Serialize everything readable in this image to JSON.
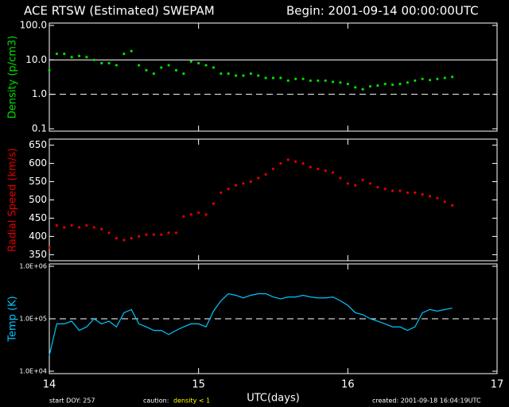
{
  "header": {
    "title": "ACE RTSW (Estimated) SWEPAM",
    "begin": "Begin: 2001-09-14 00:00:00UTC"
  },
  "footer": {
    "start": "start DOY: 257",
    "caution": "caution:",
    "caution_note": "density < 1",
    "created": "created: 2001-09-18 16:04:19UTC"
  },
  "chart_data": [
    {
      "type": "scatter",
      "ylabel": "Density (p/cm3)",
      "log_y": true,
      "color": "#00e000",
      "xlim": [
        14,
        17
      ],
      "xticks": [
        14,
        15,
        16,
        17
      ],
      "ylim": [
        0.1,
        100
      ],
      "yticks": [
        {
          "value": 0.1,
          "label": "0.1"
        },
        {
          "value": 1,
          "label": "1.0"
        },
        {
          "value": 10,
          "label": "10.0"
        },
        {
          "value": 100,
          "label": "100.0"
        }
      ],
      "hlines": [
        {
          "value": 10,
          "style": "solid"
        },
        {
          "value": 1,
          "style": "dashed"
        }
      ],
      "x": [
        14.0,
        14.05,
        14.1,
        14.15,
        14.2,
        14.25,
        14.3,
        14.35,
        14.4,
        14.45,
        14.5,
        14.55,
        14.6,
        14.65,
        14.7,
        14.75,
        14.8,
        14.85,
        14.9,
        14.95,
        15.0,
        15.05,
        15.1,
        15.15,
        15.2,
        15.25,
        15.3,
        15.35,
        15.4,
        15.45,
        15.5,
        15.55,
        15.6,
        15.65,
        15.7,
        15.75,
        15.8,
        15.85,
        15.9,
        15.95,
        16.0,
        16.05,
        16.1,
        16.15,
        16.2,
        16.25,
        16.3,
        16.35,
        16.4,
        16.45,
        16.5,
        16.55,
        16.6,
        16.65,
        16.7
      ],
      "values": [
        5,
        15,
        15,
        12,
        13,
        12,
        10,
        8,
        8,
        7,
        15,
        18,
        7,
        5,
        4,
        6,
        7,
        5,
        4,
        9,
        8,
        7,
        6,
        4,
        4,
        3.5,
        3.5,
        4,
        3.5,
        3,
        3,
        3,
        2.5,
        2.8,
        2.8,
        2.5,
        2.5,
        2.5,
        2.3,
        2.2,
        2.0,
        1.6,
        1.4,
        1.7,
        1.8,
        2.0,
        1.9,
        2.0,
        2.2,
        2.5,
        2.8,
        2.6,
        2.8,
        3.0,
        3.2
      ]
    },
    {
      "type": "scatter",
      "ylabel": "Radial Speed (km/s)",
      "log_y": false,
      "color": "#e00000",
      "xlim": [
        14,
        17
      ],
      "xticks": [
        14,
        15,
        16,
        17
      ],
      "ylim": [
        340,
        660
      ],
      "yticks": [
        350,
        400,
        450,
        500,
        550,
        600,
        650
      ],
      "x": [
        14.0,
        14.05,
        14.1,
        14.15,
        14.2,
        14.25,
        14.3,
        14.35,
        14.4,
        14.45,
        14.5,
        14.55,
        14.6,
        14.65,
        14.7,
        14.75,
        14.8,
        14.85,
        14.9,
        14.95,
        15.0,
        15.05,
        15.1,
        15.15,
        15.2,
        15.25,
        15.3,
        15.35,
        15.4,
        15.45,
        15.5,
        15.55,
        15.6,
        15.65,
        15.7,
        15.75,
        15.8,
        15.85,
        15.9,
        15.95,
        16.0,
        16.05,
        16.1,
        16.15,
        16.2,
        16.25,
        16.3,
        16.35,
        16.4,
        16.45,
        16.5,
        16.55,
        16.6,
        16.65,
        16.7
      ],
      "values": [
        370,
        430,
        425,
        430,
        425,
        430,
        425,
        420,
        410,
        395,
        390,
        395,
        400,
        405,
        405,
        405,
        410,
        410,
        455,
        460,
        465,
        460,
        490,
        520,
        530,
        540,
        545,
        550,
        560,
        570,
        585,
        600,
        610,
        605,
        600,
        590,
        585,
        580,
        575,
        560,
        545,
        540,
        555,
        545,
        535,
        530,
        525,
        525,
        520,
        520,
        515,
        510,
        505,
        495,
        485
      ]
    },
    {
      "type": "line",
      "ylabel": "Temp (K)",
      "log_y": true,
      "color": "#00c8ff",
      "xlabel": "UTC(days)",
      "xlim": [
        14,
        17
      ],
      "xticks": [
        14,
        15,
        16,
        17
      ],
      "ylim": [
        10000,
        1000000
      ],
      "yticks": [
        {
          "value": 10000,
          "label": "1.0E+04"
        },
        {
          "value": 100000,
          "label": "1.0E+05"
        },
        {
          "value": 1000000,
          "label": "1.0E+06"
        }
      ],
      "hlines": [
        {
          "value": 100000,
          "style": "dashed"
        }
      ],
      "x": [
        14.0,
        14.05,
        14.1,
        14.15,
        14.2,
        14.25,
        14.3,
        14.35,
        14.4,
        14.45,
        14.5,
        14.55,
        14.6,
        14.65,
        14.7,
        14.75,
        14.8,
        14.85,
        14.9,
        14.95,
        15.0,
        15.05,
        15.1,
        15.15,
        15.2,
        15.25,
        15.3,
        15.35,
        15.4,
        15.45,
        15.5,
        15.55,
        15.6,
        15.65,
        15.7,
        15.75,
        15.8,
        15.85,
        15.9,
        15.95,
        16.0,
        16.05,
        16.1,
        16.15,
        16.2,
        16.25,
        16.3,
        16.35,
        16.4,
        16.45,
        16.5,
        16.55,
        16.6,
        16.65,
        16.7
      ],
      "values": [
        20000,
        80000,
        80000,
        90000,
        60000,
        70000,
        100000,
        80000,
        90000,
        70000,
        130000,
        150000,
        80000,
        70000,
        60000,
        60000,
        50000,
        60000,
        70000,
        80000,
        80000,
        70000,
        140000,
        220000,
        300000,
        280000,
        250000,
        280000,
        300000,
        300000,
        260000,
        240000,
        260000,
        260000,
        280000,
        260000,
        250000,
        250000,
        260000,
        220000,
        180000,
        130000,
        120000,
        100000,
        90000,
        80000,
        70000,
        70000,
        60000,
        70000,
        130000,
        150000,
        140000,
        150000,
        160000
      ]
    }
  ]
}
